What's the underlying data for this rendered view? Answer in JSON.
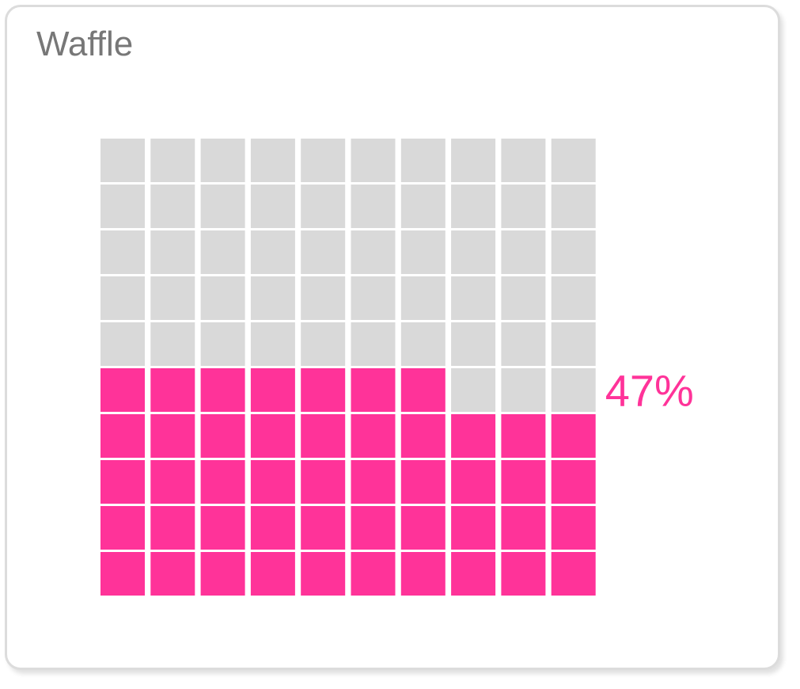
{
  "chart_data": {
    "type": "waffle",
    "title": "Waffle",
    "values": [
      47
    ],
    "value_labels": [
      "47%"
    ],
    "color": "#ff3399",
    "empty_color": "#d9d9d9"
  }
}
